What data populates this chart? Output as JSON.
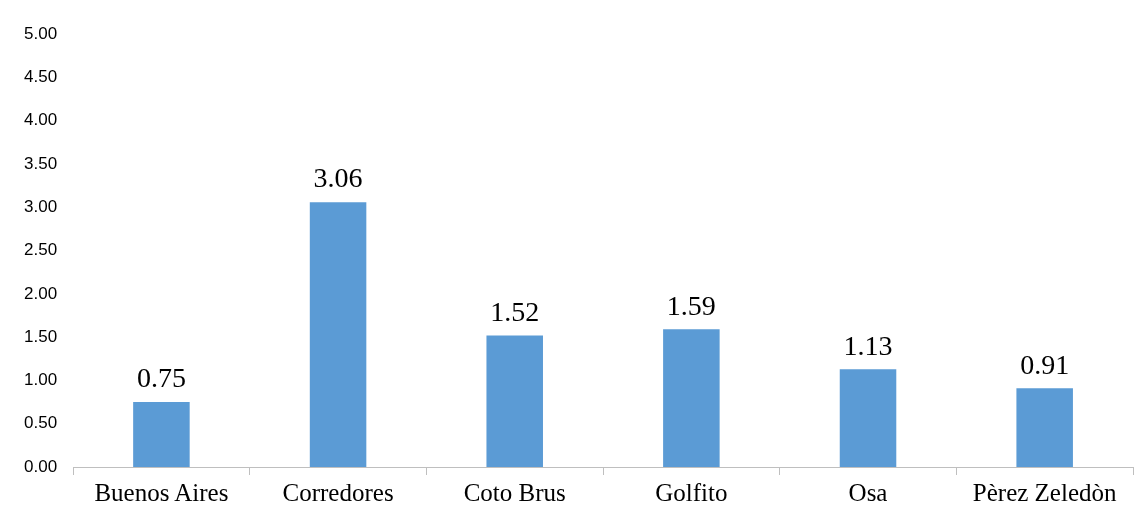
{
  "chart_data": {
    "type": "bar",
    "categories": [
      "Buenos Aires",
      "Corredores",
      "Coto Brus",
      "Golfito",
      "Osa",
      "Pèrez Zeledòn"
    ],
    "values": [
      0.75,
      3.06,
      1.52,
      1.59,
      1.13,
      0.91
    ],
    "color": "#5b9bd5",
    "ylim": [
      0,
      5
    ],
    "yticks": [
      {
        "value": 0,
        "label": "0.00"
      },
      {
        "value": 0.5,
        "label": "0.50"
      },
      {
        "value": 1,
        "label": "1.00"
      },
      {
        "value": 1.5,
        "label": "1.50"
      },
      {
        "value": 2,
        "label": "2.00"
      },
      {
        "value": 2.5,
        "label": "2.50"
      },
      {
        "value": 3,
        "label": "3.00"
      },
      {
        "value": 3.5,
        "label": "3.50"
      },
      {
        "value": 4,
        "label": "4.00"
      },
      {
        "value": 4.5,
        "label": "4.50"
      },
      {
        "value": 5,
        "label": "5.00"
      }
    ],
    "grid": false,
    "legend": false,
    "data_labels": true
  }
}
